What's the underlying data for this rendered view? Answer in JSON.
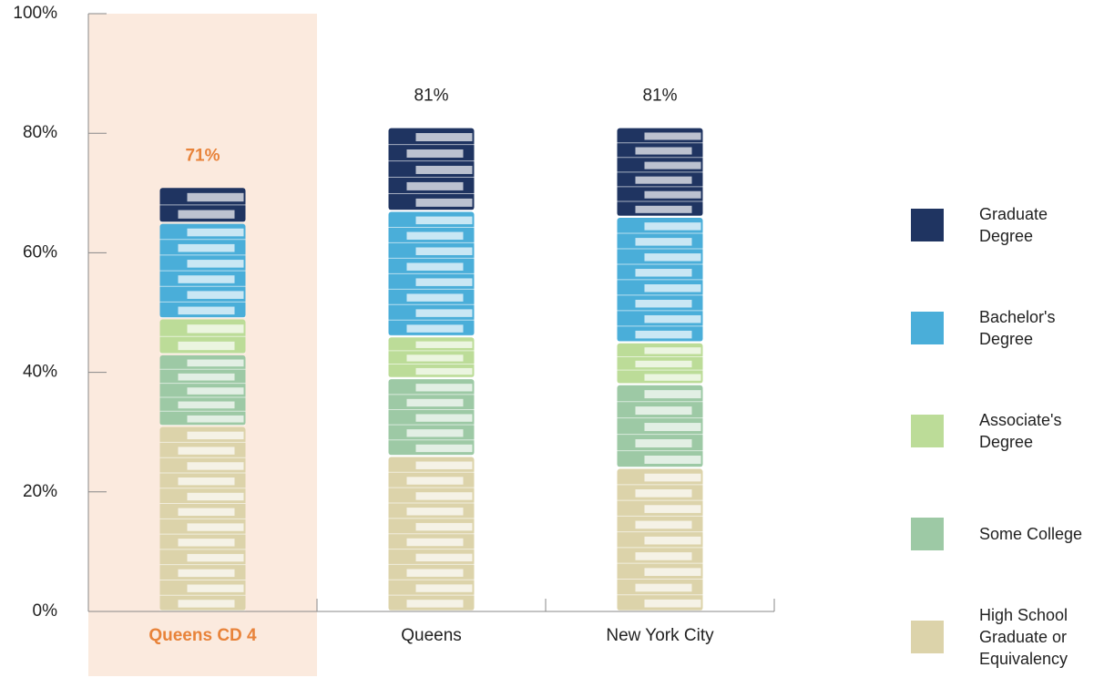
{
  "chart_data": {
    "type": "stacked-bar",
    "categories": [
      "Queens CD 4",
      "Queens",
      "New York City"
    ],
    "series": [
      {
        "name": "High School Graduate or Equivalency",
        "color": "#dcd3aa",
        "values": [
          31,
          26,
          24
        ]
      },
      {
        "name": "Some College",
        "color": "#9dc9a5",
        "values": [
          12,
          13,
          14
        ]
      },
      {
        "name": "Associate's Degree",
        "color": "#bcdc98",
        "values": [
          6,
          7,
          7
        ]
      },
      {
        "name": "Bachelor's Degree",
        "color": "#4aaed9",
        "values": [
          16,
          21,
          21
        ]
      },
      {
        "name": "Graduate Degree",
        "color": "#1f3461",
        "values": [
          6,
          14,
          15
        ]
      }
    ],
    "totals": [
      71,
      81,
      81
    ],
    "total_labels": [
      "71%",
      "81%",
      "81%"
    ],
    "highlight": 0,
    "highlight_color": "#e8833a",
    "highlight_background": "#fbeade",
    "ylim": [
      0,
      100
    ],
    "yticks": [
      {
        "value": 0,
        "label": "0%"
      },
      {
        "value": 20,
        "label": "20%"
      },
      {
        "value": 40,
        "label": "40%"
      },
      {
        "value": 60,
        "label": "60%"
      },
      {
        "value": 80,
        "label": "80%"
      },
      {
        "value": 100,
        "label": "100%"
      }
    ]
  }
}
